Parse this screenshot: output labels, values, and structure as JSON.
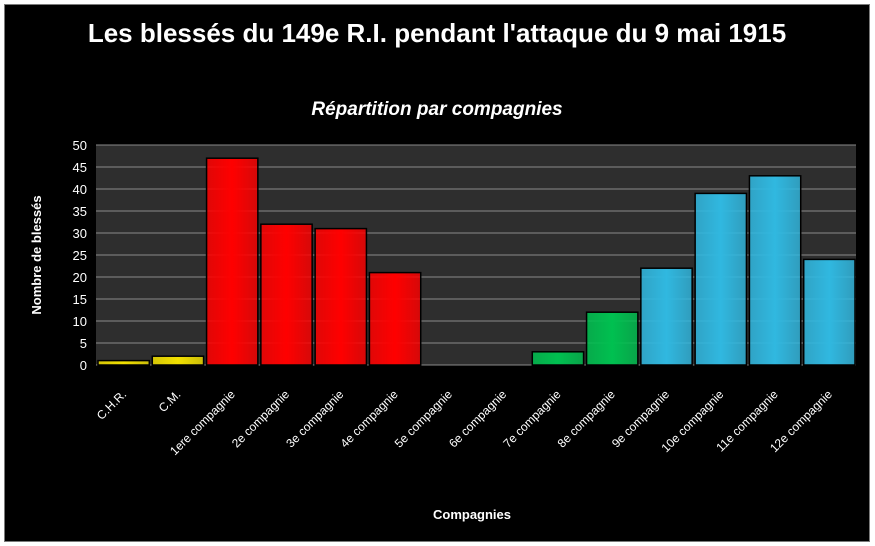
{
  "chart_data": {
    "type": "bar",
    "title": "Les blessés du 149e R.I. pendant l'attaque du 9 mai 1915",
    "subtitle": "Répartition par compagnies",
    "xlabel": "Compagnies",
    "ylabel": "Nombre de blessés",
    "ylim": [
      0,
      50
    ],
    "yticks": [
      0,
      5,
      10,
      15,
      20,
      25,
      30,
      35,
      40,
      45,
      50
    ],
    "grid": true,
    "legend": "none",
    "categories": [
      "C.H.R.",
      "C.M.",
      "1ere compagnie",
      "2e compagnie",
      "3e compagnie",
      "4e compagnie",
      "5e compagnie",
      "6e compagnie",
      "7e compagnie",
      "8e compagnie",
      "9e compagnie",
      "10e compagnie",
      "11e compagnie",
      "12e compagnie"
    ],
    "values": [
      1,
      2,
      47,
      32,
      31,
      21,
      0,
      0,
      3,
      12,
      22,
      39,
      43,
      24
    ],
    "colors": [
      "#f2e000",
      "#f2e000",
      "#ff0000",
      "#ff0000",
      "#ff0000",
      "#ff0000",
      "#ff0000",
      "#ff0000",
      "#00c050",
      "#00c050",
      "#30b8e0",
      "#30b8e0",
      "#30b8e0",
      "#30b8e0"
    ]
  }
}
